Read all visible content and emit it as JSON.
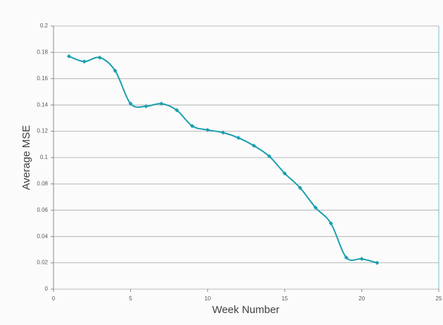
{
  "chart_data": {
    "type": "scatter-smooth-line",
    "x_label": "Week Number",
    "y_label": "Average MSE",
    "x": [
      1,
      2,
      3,
      4,
      5,
      6,
      7,
      8,
      9,
      10,
      11,
      12,
      13,
      14,
      15,
      16,
      17,
      18,
      19,
      20,
      21
    ],
    "series": [
      {
        "color": "#1b9fae",
        "values": [
          0.177,
          0.173,
          0.176,
          0.166,
          0.141,
          0.139,
          0.141,
          0.136,
          0.124,
          0.121,
          0.119,
          0.115,
          0.109,
          0.101,
          0.088,
          0.077,
          0.062,
          0.05,
          0.024,
          0.023,
          0.02
        ]
      }
    ],
    "xlim": [
      0,
      25
    ],
    "xticks": [
      0,
      5,
      10,
      15,
      20,
      25
    ],
    "ylim": [
      0,
      0.2
    ],
    "yticks": [
      0,
      0.02,
      0.04,
      0.06,
      0.08,
      0.1,
      0.12,
      0.14,
      0.16,
      0.18,
      0.2
    ],
    "grid": true
  }
}
